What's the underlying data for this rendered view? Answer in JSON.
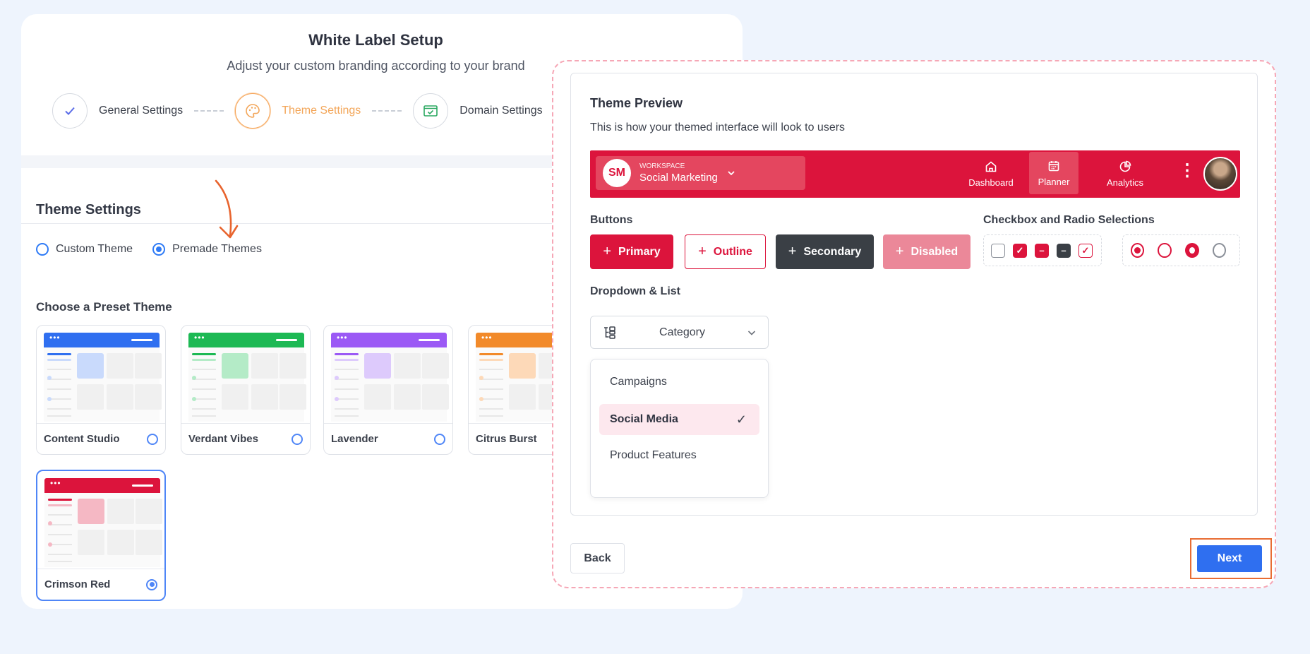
{
  "header": {
    "title": "White Label Setup",
    "subtitle": "Adjust your custom branding according to your brand"
  },
  "steps": [
    {
      "label": "General Settings",
      "state": "done",
      "icon": "check-icon"
    },
    {
      "label": "Theme Settings",
      "state": "active",
      "icon": "palette-icon"
    },
    {
      "label": "Domain Settings",
      "state": "pending",
      "icon": "browser-check-icon"
    }
  ],
  "theme_settings": {
    "title": "Theme Settings",
    "options": [
      {
        "label": "Custom Theme",
        "selected": false
      },
      {
        "label": "Premade Themes",
        "selected": true
      }
    ],
    "preset_title": "Choose a Preset Theme",
    "presets": [
      {
        "name": "Content Studio",
        "color": "#2f6ff0",
        "light": "#c9dafc",
        "selected": false
      },
      {
        "name": "Verdant Vibes",
        "color": "#1db954",
        "light": "#b4ebc7",
        "selected": false
      },
      {
        "name": "Lavender",
        "color": "#9b59f5",
        "light": "#ddcafc",
        "selected": false
      },
      {
        "name": "Citrus Burst",
        "color": "#f28a2a",
        "light": "#fdd9b8",
        "selected": false
      },
      {
        "name": "Crimson Red",
        "color": "#dc143c",
        "light": "#f5b8c4",
        "selected": true
      }
    ]
  },
  "preview": {
    "title": "Theme Preview",
    "subtitle": "This is how your themed interface will look to users",
    "workspace": {
      "avatar": "SM",
      "small": "WORKSPACE",
      "name": "Social Marketing"
    },
    "nav": [
      {
        "label": "Dashboard",
        "icon": "home-icon",
        "active": false
      },
      {
        "label": "Planner",
        "icon": "calendar-icon",
        "active": true
      },
      {
        "label": "Analytics",
        "icon": "pie-chart-icon",
        "active": false
      }
    ],
    "buttons_label": "Buttons",
    "buttons": {
      "primary": "Primary",
      "outline": "Outline",
      "secondary": "Secondary",
      "disabled": "Disabled"
    },
    "selections_label": "Checkbox and Radio Selections",
    "dropdown_label": "Dropdown & List",
    "dropdown_value": "Category",
    "list": [
      {
        "label": "Campaigns",
        "selected": false
      },
      {
        "label": "Social Media",
        "selected": true
      },
      {
        "label": "Product Features",
        "selected": false
      }
    ]
  },
  "footer": {
    "back": "Back",
    "next": "Next"
  },
  "colors": {
    "accent": "#dc143c",
    "primary_blue": "#2f6ff0",
    "step_active": "#f3a659"
  }
}
